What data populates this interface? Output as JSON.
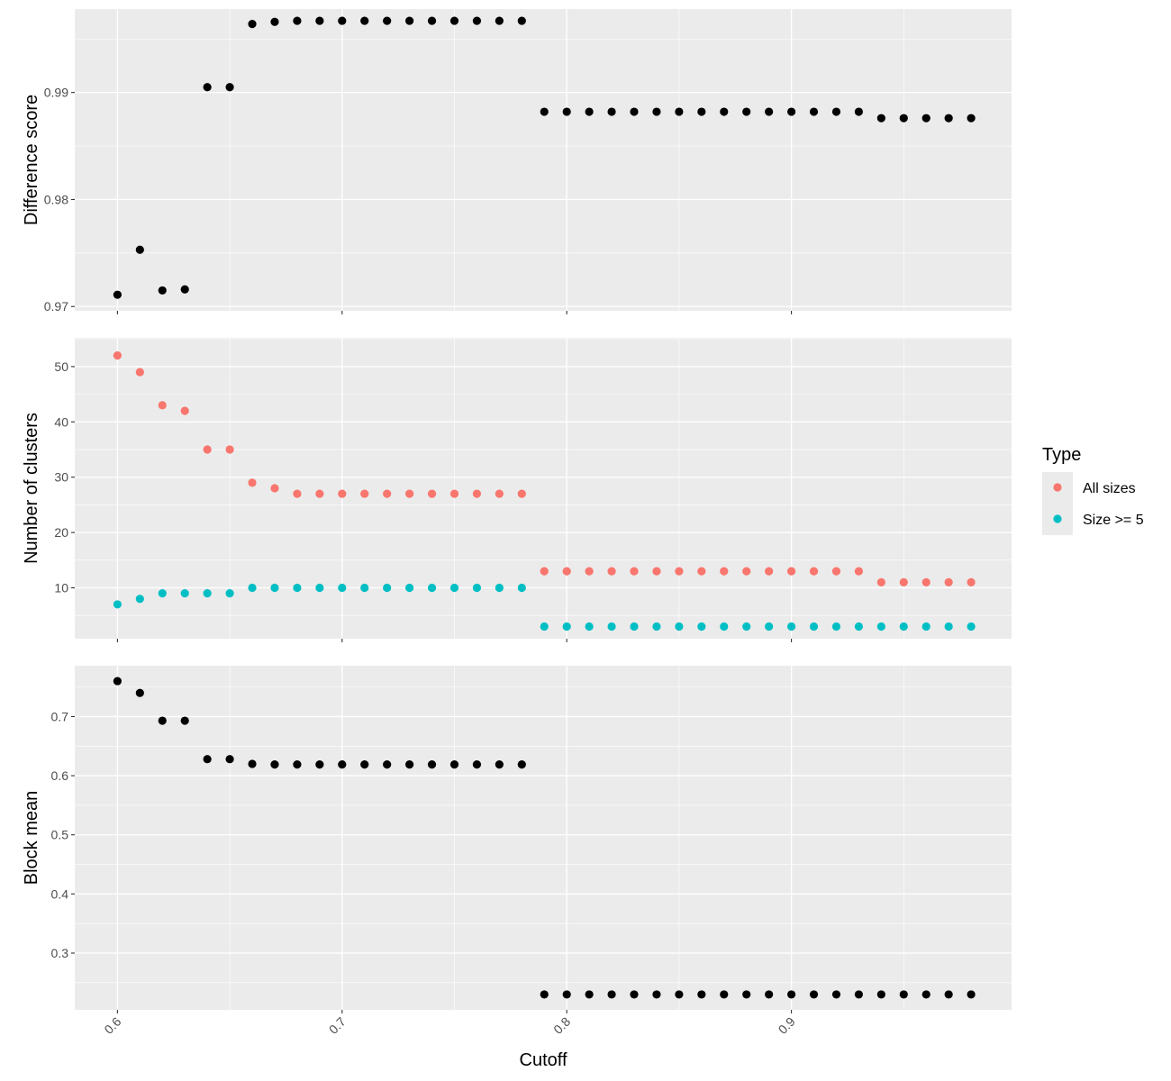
{
  "chart_data": {
    "type": "scatter",
    "xlabel": "Cutoff",
    "x_ticks": [
      "0.6",
      "0.7",
      "0.8",
      "0.9"
    ],
    "xlim": [
      0.581,
      0.998
    ],
    "grid": true,
    "legend": {
      "title": "Type",
      "placement": "right",
      "items": [
        {
          "name": "All sizes",
          "color": "#F8766D"
        },
        {
          "name": "Size >= 5",
          "color": "#00BFC4"
        }
      ]
    },
    "x": [
      0.6,
      0.61,
      0.62,
      0.63,
      0.64,
      0.65,
      0.66,
      0.67,
      0.68,
      0.69,
      0.7,
      0.71,
      0.72,
      0.73,
      0.74,
      0.75,
      0.76,
      0.77,
      0.78,
      0.79,
      0.8,
      0.81,
      0.82,
      0.83,
      0.84,
      0.85,
      0.86,
      0.87,
      0.88,
      0.89,
      0.9,
      0.91,
      0.92,
      0.93,
      0.94,
      0.95,
      0.96,
      0.97,
      0.98
    ],
    "panels": [
      {
        "ylabel": "Difference score",
        "ylim": [
          0.9696,
          0.9978
        ],
        "y_ticks": [
          "0.97",
          "0.98",
          "0.99"
        ],
        "series": [
          {
            "color": "#000000",
            "values": [
              0.9711,
              0.9753,
              0.9715,
              0.9716,
              0.9905,
              0.9905,
              0.9964,
              0.9966,
              0.9967,
              0.9967,
              0.9967,
              0.9967,
              0.9967,
              0.9967,
              0.9967,
              0.9967,
              0.9967,
              0.9967,
              0.9967,
              0.9882,
              0.9882,
              0.9882,
              0.9882,
              0.9882,
              0.9882,
              0.9882,
              0.9882,
              0.9882,
              0.9882,
              0.9882,
              0.9882,
              0.9882,
              0.9882,
              0.9882,
              0.9876,
              0.9876,
              0.9876,
              0.9876,
              0.9876
            ]
          }
        ]
      },
      {
        "ylabel": "Number of clusters",
        "ylim": [
          0.8,
          55.2
        ],
        "y_ticks": [
          "10",
          "20",
          "30",
          "40",
          "50"
        ],
        "series": [
          {
            "name": "All sizes",
            "color": "#F8766D",
            "values": [
              52,
              49,
              43,
              42,
              35,
              35,
              29,
              28,
              27,
              27,
              27,
              27,
              27,
              27,
              27,
              27,
              27,
              27,
              27,
              13,
              13,
              13,
              13,
              13,
              13,
              13,
              13,
              13,
              13,
              13,
              13,
              13,
              13,
              13,
              11,
              11,
              11,
              11,
              11
            ]
          },
          {
            "name": "Size >= 5",
            "color": "#00BFC4",
            "values": [
              7,
              8,
              9,
              9,
              9,
              9,
              10,
              10,
              10,
              10,
              10,
              10,
              10,
              10,
              10,
              10,
              10,
              10,
              10,
              3,
              3,
              3,
              3,
              3,
              3,
              3,
              3,
              3,
              3,
              3,
              3,
              3,
              3,
              3,
              3,
              3,
              3,
              3,
              3
            ]
          }
        ]
      },
      {
        "ylabel": "Block mean",
        "ylim": [
          0.204,
          0.786
        ],
        "y_ticks": [
          "0.3",
          "0.4",
          "0.5",
          "0.6",
          "0.7"
        ],
        "series": [
          {
            "color": "#000000",
            "values": [
              0.76,
              0.74,
              0.693,
              0.693,
              0.628,
              0.628,
              0.62,
              0.619,
              0.619,
              0.619,
              0.619,
              0.619,
              0.619,
              0.619,
              0.619,
              0.619,
              0.619,
              0.619,
              0.619,
              0.23,
              0.23,
              0.23,
              0.23,
              0.23,
              0.23,
              0.23,
              0.23,
              0.23,
              0.23,
              0.23,
              0.23,
              0.23,
              0.23,
              0.23,
              0.23,
              0.23,
              0.23,
              0.23,
              0.23
            ]
          }
        ]
      }
    ]
  }
}
